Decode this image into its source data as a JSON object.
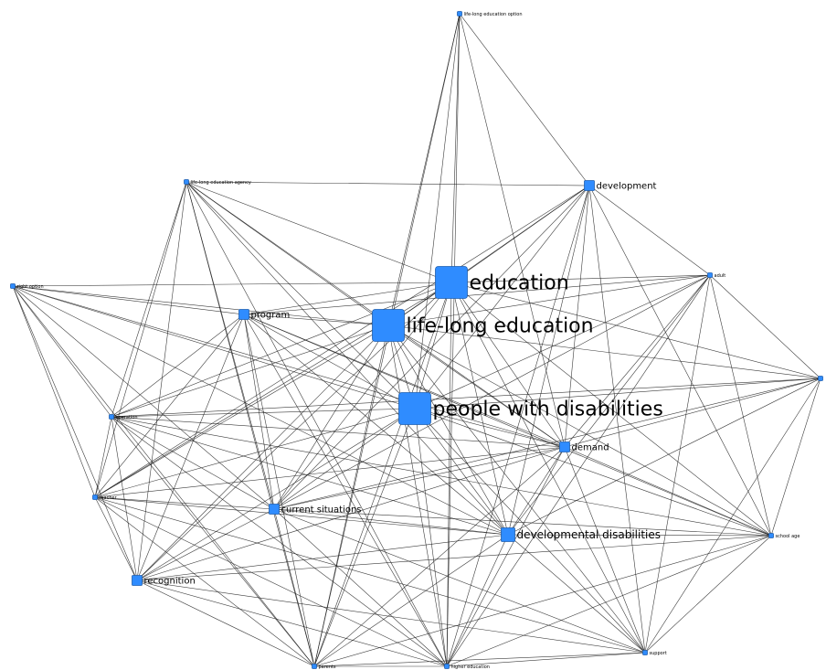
{
  "diagram": {
    "type": "semantic-network",
    "node_color": "#2f8cff",
    "edge_color": "#1a1a1a",
    "background": "#ffffff",
    "nodes": [
      {
        "id": "lifelong-education-option",
        "label": "life-long education option",
        "weight": 1
      },
      {
        "id": "development",
        "label": "development",
        "weight": 2
      },
      {
        "id": "lifelong-education-agency",
        "label": "life-long education agency",
        "weight": 1
      },
      {
        "id": "education",
        "label": "education",
        "weight": 5
      },
      {
        "id": "adult",
        "label": "adult",
        "weight": 1
      },
      {
        "id": "right-option",
        "label": "right option",
        "weight": 1
      },
      {
        "id": "program",
        "label": "program",
        "weight": 2
      },
      {
        "id": "lifelong-education",
        "label": "life-long education",
        "weight": 5
      },
      {
        "id": "right-node",
        "label": "",
        "weight": 1
      },
      {
        "id": "people-with-disabilities",
        "label": "people with disabilities",
        "weight": 5
      },
      {
        "id": "operation",
        "label": "operation",
        "weight": 1
      },
      {
        "id": "demand",
        "label": "demand",
        "weight": 2
      },
      {
        "id": "teacher",
        "label": "teacher",
        "weight": 1
      },
      {
        "id": "current-situations",
        "label": "current situations",
        "weight": 2
      },
      {
        "id": "developmental-disabilities",
        "label": "developmental disabilities",
        "weight": 3
      },
      {
        "id": "school-age",
        "label": "school age",
        "weight": 1
      },
      {
        "id": "recognition",
        "label": "recognition",
        "weight": 2
      },
      {
        "id": "support",
        "label": "support",
        "weight": 1
      },
      {
        "id": "parents",
        "label": "parents",
        "weight": 1
      },
      {
        "id": "higher-education",
        "label": "higher education",
        "weight": 1
      }
    ],
    "edges": [
      [
        "lifelong-education-option",
        "development"
      ],
      [
        "lifelong-education-option",
        "education"
      ],
      [
        "lifelong-education-option",
        "lifelong-education"
      ],
      [
        "lifelong-education-option",
        "people-with-disabilities"
      ],
      [
        "lifelong-education-option",
        "higher-education"
      ],
      [
        "lifelong-education-option",
        "parents"
      ],
      [
        "lifelong-education-option",
        "demand"
      ],
      [
        "development",
        "lifelong-education-agency"
      ],
      [
        "development",
        "education"
      ],
      [
        "development",
        "lifelong-education"
      ],
      [
        "development",
        "people-with-disabilities"
      ],
      [
        "development",
        "adult"
      ],
      [
        "development",
        "demand"
      ],
      [
        "development",
        "developmental-disabilities"
      ],
      [
        "development",
        "school-age"
      ],
      [
        "development",
        "support"
      ],
      [
        "development",
        "higher-education"
      ],
      [
        "development",
        "current-situations"
      ],
      [
        "development",
        "teacher"
      ],
      [
        "lifelong-education-agency",
        "education"
      ],
      [
        "lifelong-education-agency",
        "lifelong-education"
      ],
      [
        "lifelong-education-agency",
        "people-with-disabilities"
      ],
      [
        "lifelong-education-agency",
        "operation"
      ],
      [
        "lifelong-education-agency",
        "teacher"
      ],
      [
        "lifelong-education-agency",
        "recognition"
      ],
      [
        "lifelong-education-agency",
        "current-situations"
      ],
      [
        "lifelong-education-agency",
        "developmental-disabilities"
      ],
      [
        "lifelong-education-agency",
        "parents"
      ],
      [
        "lifelong-education-agency",
        "higher-education"
      ],
      [
        "lifelong-education-agency",
        "demand"
      ],
      [
        "education",
        "adult"
      ],
      [
        "education",
        "right-option"
      ],
      [
        "education",
        "program"
      ],
      [
        "education",
        "lifelong-education"
      ],
      [
        "education",
        "people-with-disabilities"
      ],
      [
        "education",
        "operation"
      ],
      [
        "education",
        "demand"
      ],
      [
        "education",
        "teacher"
      ],
      [
        "education",
        "current-situations"
      ],
      [
        "education",
        "developmental-disabilities"
      ],
      [
        "education",
        "school-age"
      ],
      [
        "education",
        "recognition"
      ],
      [
        "education",
        "support"
      ],
      [
        "education",
        "parents"
      ],
      [
        "education",
        "higher-education"
      ],
      [
        "education",
        "right-node"
      ],
      [
        "adult",
        "lifelong-education"
      ],
      [
        "adult",
        "people-with-disabilities"
      ],
      [
        "adult",
        "program"
      ],
      [
        "adult",
        "right-node"
      ],
      [
        "adult",
        "demand"
      ],
      [
        "adult",
        "developmental-disabilities"
      ],
      [
        "adult",
        "school-age"
      ],
      [
        "adult",
        "support"
      ],
      [
        "adult",
        "current-situations"
      ],
      [
        "adult",
        "higher-education"
      ],
      [
        "right-option",
        "lifelong-education"
      ],
      [
        "right-option",
        "people-with-disabilities"
      ],
      [
        "right-option",
        "program"
      ],
      [
        "right-option",
        "operation"
      ],
      [
        "right-option",
        "teacher"
      ],
      [
        "right-option",
        "current-situations"
      ],
      [
        "right-option",
        "recognition"
      ],
      [
        "right-option",
        "developmental-disabilities"
      ],
      [
        "right-option",
        "parents"
      ],
      [
        "right-option",
        "demand"
      ],
      [
        "program",
        "lifelong-education"
      ],
      [
        "program",
        "people-with-disabilities"
      ],
      [
        "program",
        "operation"
      ],
      [
        "program",
        "teacher"
      ],
      [
        "program",
        "current-situations"
      ],
      [
        "program",
        "developmental-disabilities"
      ],
      [
        "program",
        "recognition"
      ],
      [
        "program",
        "parents"
      ],
      [
        "program",
        "higher-education"
      ],
      [
        "program",
        "demand"
      ],
      [
        "program",
        "school-age"
      ],
      [
        "lifelong-education",
        "people-with-disabilities"
      ],
      [
        "lifelong-education",
        "right-node"
      ],
      [
        "lifelong-education",
        "operation"
      ],
      [
        "lifelong-education",
        "demand"
      ],
      [
        "lifelong-education",
        "teacher"
      ],
      [
        "lifelong-education",
        "current-situations"
      ],
      [
        "lifelong-education",
        "developmental-disabilities"
      ],
      [
        "lifelong-education",
        "school-age"
      ],
      [
        "lifelong-education",
        "recognition"
      ],
      [
        "lifelong-education",
        "support"
      ],
      [
        "lifelong-education",
        "parents"
      ],
      [
        "lifelong-education",
        "higher-education"
      ],
      [
        "right-node",
        "people-with-disabilities"
      ],
      [
        "right-node",
        "demand"
      ],
      [
        "right-node",
        "school-age"
      ],
      [
        "right-node",
        "developmental-disabilities"
      ],
      [
        "right-node",
        "support"
      ],
      [
        "right-node",
        "operation"
      ],
      [
        "right-node",
        "current-situations"
      ],
      [
        "people-with-disabilities",
        "operation"
      ],
      [
        "people-with-disabilities",
        "demand"
      ],
      [
        "people-with-disabilities",
        "teacher"
      ],
      [
        "people-with-disabilities",
        "current-situations"
      ],
      [
        "people-with-disabilities",
        "developmental-disabilities"
      ],
      [
        "people-with-disabilities",
        "school-age"
      ],
      [
        "people-with-disabilities",
        "recognition"
      ],
      [
        "people-with-disabilities",
        "support"
      ],
      [
        "people-with-disabilities",
        "parents"
      ],
      [
        "people-with-disabilities",
        "higher-education"
      ],
      [
        "operation",
        "teacher"
      ],
      [
        "operation",
        "current-situations"
      ],
      [
        "operation",
        "recognition"
      ],
      [
        "operation",
        "developmental-disabilities"
      ],
      [
        "operation",
        "parents"
      ],
      [
        "operation",
        "higher-education"
      ],
      [
        "operation",
        "demand"
      ],
      [
        "operation",
        "school-age"
      ],
      [
        "demand",
        "current-situations"
      ],
      [
        "demand",
        "developmental-disabilities"
      ],
      [
        "demand",
        "teacher"
      ],
      [
        "demand",
        "recognition"
      ],
      [
        "demand",
        "school-age"
      ],
      [
        "demand",
        "support"
      ],
      [
        "demand",
        "parents"
      ],
      [
        "demand",
        "higher-education"
      ],
      [
        "teacher",
        "current-situations"
      ],
      [
        "teacher",
        "recognition"
      ],
      [
        "teacher",
        "developmental-disabilities"
      ],
      [
        "teacher",
        "parents"
      ],
      [
        "teacher",
        "higher-education"
      ],
      [
        "teacher",
        "support"
      ],
      [
        "current-situations",
        "developmental-disabilities"
      ],
      [
        "current-situations",
        "recognition"
      ],
      [
        "current-situations",
        "parents"
      ],
      [
        "current-situations",
        "higher-education"
      ],
      [
        "current-situations",
        "support"
      ],
      [
        "current-situations",
        "school-age"
      ],
      [
        "developmental-disabilities",
        "recognition"
      ],
      [
        "developmental-disabilities",
        "school-age"
      ],
      [
        "developmental-disabilities",
        "support"
      ],
      [
        "developmental-disabilities",
        "parents"
      ],
      [
        "developmental-disabilities",
        "higher-education"
      ],
      [
        "school-age",
        "support"
      ],
      [
        "school-age",
        "higher-education"
      ],
      [
        "school-age",
        "recognition"
      ],
      [
        "school-age",
        "parents"
      ],
      [
        "recognition",
        "parents"
      ],
      [
        "recognition",
        "higher-education"
      ],
      [
        "recognition",
        "support"
      ],
      [
        "support",
        "higher-education"
      ],
      [
        "support",
        "parents"
      ],
      [
        "parents",
        "higher-education"
      ]
    ]
  }
}
